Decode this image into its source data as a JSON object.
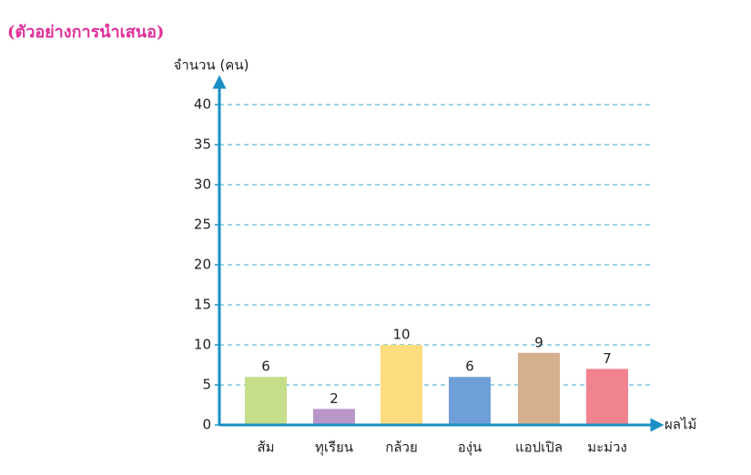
{
  "header": {
    "title": "(ตัวอย่างการนำเสนอ)"
  },
  "chart_data": {
    "type": "bar",
    "y_label": "จำนวน (คน)",
    "x_label": "ผลไม้",
    "categories": [
      "ส้ม",
      "ทุเรียน",
      "กล้วย",
      "องุ่น",
      "แอปเปิล",
      "มะม่วง"
    ],
    "values": [
      6,
      2,
      10,
      6,
      9,
      7
    ],
    "colors": [
      "#c5de8a",
      "#b996c9",
      "#fddc7d",
      "#6f9fd8",
      "#d4b08f",
      "#f1838e"
    ],
    "ylim": [
      0,
      40
    ],
    "yticks": [
      0,
      5,
      10,
      15,
      20,
      25,
      30,
      35,
      40
    ],
    "grid": true
  }
}
